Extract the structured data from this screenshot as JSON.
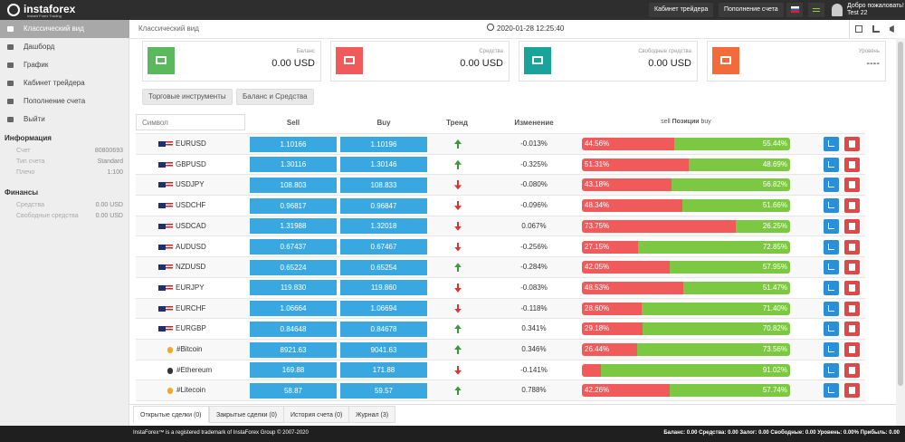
{
  "topbar": {
    "logo": "instaforex",
    "logo_sub": "Instant Forex Trading",
    "buttons": [
      "Кабинет трейдера",
      "Пополнение счета"
    ],
    "welcome": "Добро пожаловать!",
    "user": "Test 22"
  },
  "sidebar": {
    "menu": [
      "Классический вид",
      "Дашборд",
      "График",
      "Кабинет трейдера",
      "Пополнение счета",
      "Выйти"
    ],
    "info_title": "Информация",
    "info": [
      {
        "label": "Счет",
        "value": "80800693"
      },
      {
        "label": "Тип счета",
        "value": "Standard"
      },
      {
        "label": "Плечо",
        "value": "1:100"
      }
    ],
    "finance_title": "Финансы",
    "finance": [
      {
        "label": "Средства",
        "value": "0.00 USD"
      },
      {
        "label": "Свободные средства",
        "value": "0.00 USD"
      }
    ]
  },
  "header": {
    "title": "Классический вид",
    "datetime": "2020-01-28 12:25:40"
  },
  "cards": [
    {
      "label": "Баланс",
      "value": "0.00 USD",
      "color": "#5cb85c"
    },
    {
      "label": "Средства",
      "value": "0.00 USD",
      "color": "#f05a5a"
    },
    {
      "label": "Свободные средства",
      "value": "0.00 USD",
      "color": "#1aa39a"
    },
    {
      "label": "Уровень",
      "value": "----",
      "color": "#f26b3a"
    }
  ],
  "tools": [
    "Торговые инструменты",
    "Баланс и Средства"
  ],
  "table": {
    "columns": {
      "symbol": "Символ",
      "sell": "Sell",
      "buy": "Buy",
      "trend": "Тренд",
      "change": "Изменение",
      "pos_sell": "sell",
      "pos_title": "Позиции",
      "pos_buy": "buy"
    },
    "rows": [
      {
        "symbol": "EURUSD",
        "sell": "1.10166",
        "buy": "1.10196",
        "trend": "up",
        "change": "-0.013%",
        "pos_sell": 44.56,
        "pos_sell_label": "44.56%",
        "pos_buy": 55.44,
        "pos_buy_label": "55.44%"
      },
      {
        "symbol": "GBPUSD",
        "sell": "1.30116",
        "buy": "1.30146",
        "trend": "up",
        "change": "-0.325%",
        "pos_sell": 51.31,
        "pos_sell_label": "51.31%",
        "pos_buy": 48.69,
        "pos_buy_label": "48.69%"
      },
      {
        "symbol": "USDJPY",
        "sell": "108.803",
        "buy": "108.833",
        "trend": "down",
        "change": "-0.080%",
        "pos_sell": 43.18,
        "pos_sell_label": "43.18%",
        "pos_buy": 56.82,
        "pos_buy_label": "56.82%"
      },
      {
        "symbol": "USDCHF",
        "sell": "0.96817",
        "buy": "0.96847",
        "trend": "down",
        "change": "-0.096%",
        "pos_sell": 48.34,
        "pos_sell_label": "48.34%",
        "pos_buy": 51.66,
        "pos_buy_label": "51.66%"
      },
      {
        "symbol": "USDCAD",
        "sell": "1.31988",
        "buy": "1.32018",
        "trend": "down",
        "change": "0.067%",
        "pos_sell": 73.75,
        "pos_sell_label": "73.75%",
        "pos_buy": 26.25,
        "pos_buy_label": "26.25%"
      },
      {
        "symbol": "AUDUSD",
        "sell": "0.67437",
        "buy": "0.67467",
        "trend": "down",
        "change": "-0.256%",
        "pos_sell": 27.15,
        "pos_sell_label": "27.15%",
        "pos_buy": 72.85,
        "pos_buy_label": "72.85%"
      },
      {
        "symbol": "NZDUSD",
        "sell": "0.65224",
        "buy": "0.65254",
        "trend": "up",
        "change": "-0.284%",
        "pos_sell": 42.05,
        "pos_sell_label": "42.05%",
        "pos_buy": 57.95,
        "pos_buy_label": "57.95%"
      },
      {
        "symbol": "EURJPY",
        "sell": "119.830",
        "buy": "119.860",
        "trend": "down",
        "change": "-0.083%",
        "pos_sell": 48.53,
        "pos_sell_label": "48.53%",
        "pos_buy": 51.47,
        "pos_buy_label": "51.47%"
      },
      {
        "symbol": "EURCHF",
        "sell": "1.06664",
        "buy": "1.06694",
        "trend": "down",
        "change": "-0.118%",
        "pos_sell": 28.6,
        "pos_sell_label": "28.60%",
        "pos_buy": 71.4,
        "pos_buy_label": "71.40%"
      },
      {
        "symbol": "EURGBP",
        "sell": "0.84648",
        "buy": "0.84678",
        "trend": "up",
        "change": "0.341%",
        "pos_sell": 29.18,
        "pos_sell_label": "29.18%",
        "pos_buy": 70.82,
        "pos_buy_label": "70.82%"
      },
      {
        "symbol": "#Bitcoin",
        "sell": "8921.63",
        "buy": "9041.63",
        "trend": "up",
        "change": "0.346%",
        "pos_sell": 26.44,
        "pos_sell_label": "26.44%",
        "pos_buy": 73.56,
        "pos_buy_label": "73.56%"
      },
      {
        "symbol": "#Ethereum",
        "sell": "169.88",
        "buy": "171.88",
        "trend": "down",
        "change": "-0.141%",
        "pos_sell": 8.98,
        "pos_buy": 91.02,
        "pos_buy_label": "91.02%"
      },
      {
        "symbol": "#Litecoin",
        "sell": "58.87",
        "buy": "59.57",
        "trend": "up",
        "change": "0.788%",
        "pos_sell": 42.26,
        "pos_sell_label": "42.26%",
        "pos_buy": 57.74,
        "pos_buy_label": "57.74%"
      }
    ]
  },
  "bottom_tabs": [
    "Открытые сделки (0)",
    "Закрытые сделки (0)",
    "История счета (0)",
    "Журнал (3)"
  ],
  "footer": {
    "left": "InstaForex™ is a registered trademark of InstaForex Group © 2007-2020",
    "right": "Баланс: 0.00 Средства: 0.00 Залог: 0.00 Свободные: 0.00 Уровень: 0.00% Прибыль: 0.00"
  }
}
